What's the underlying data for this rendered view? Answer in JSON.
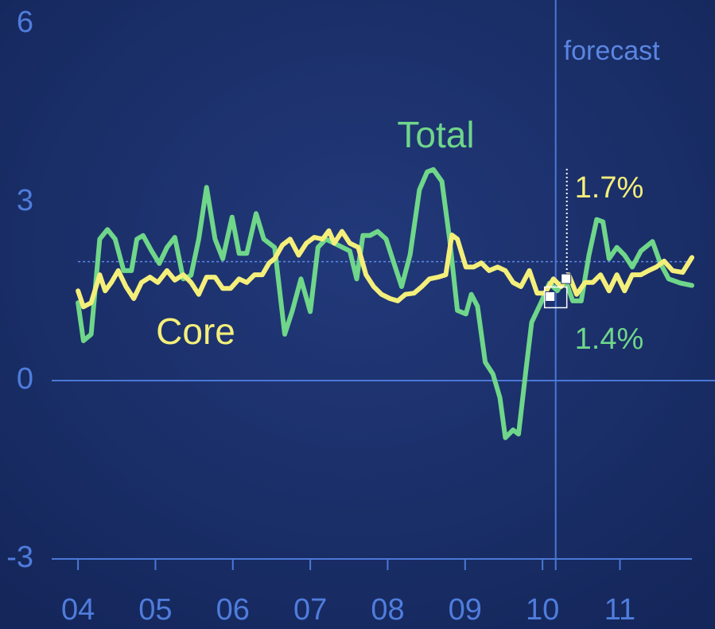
{
  "chart_data": {
    "type": "line",
    "xlim": [
      2003.66,
      2011.93
    ],
    "ylim": [
      -3,
      6
    ],
    "yticks": [
      -3,
      0,
      3,
      6
    ],
    "xticks": [
      {
        "value": 2004,
        "label": "04"
      },
      {
        "value": 2005,
        "label": "05"
      },
      {
        "value": 2006,
        "label": "06"
      },
      {
        "value": 2007,
        "label": "07"
      },
      {
        "value": 2008,
        "label": "08"
      },
      {
        "value": 2009,
        "label": "09"
      },
      {
        "value": 2010,
        "label": "10"
      },
      {
        "value": 2011,
        "label": "11"
      }
    ],
    "reference_line": 2,
    "forecast": {
      "label": "forecast",
      "x": 2010.17
    },
    "annotations": [
      {
        "text": "1.7%",
        "value": 1.7,
        "color": "#f4ef7a"
      },
      {
        "text": "1.4%",
        "value": 1.4,
        "color": "#6fd68a"
      }
    ],
    "series": [
      {
        "name": "Total",
        "color": "#6fd68a",
        "x": [
          2004.0,
          2004.07,
          2004.17,
          2004.28,
          2004.38,
          2004.48,
          2004.59,
          2004.69,
          2004.76,
          2004.84,
          2004.95,
          2005.05,
          2005.15,
          2005.25,
          2005.36,
          2005.46,
          2005.56,
          2005.66,
          2005.77,
          2005.87,
          2005.99,
          2006.08,
          2006.18,
          2006.3,
          2006.4,
          2006.54,
          2006.67,
          2006.77,
          2006.88,
          2007.0,
          2007.1,
          2007.2,
          2007.31,
          2007.51,
          2007.6,
          2007.68,
          2007.77,
          2007.87,
          2007.98,
          2008.08,
          2008.18,
          2008.29,
          2008.41,
          2008.51,
          2008.59,
          2008.7,
          2008.8,
          2008.9,
          2009.01,
          2009.08,
          2009.16,
          2009.26,
          2009.36,
          2009.45,
          2009.52,
          2009.62,
          2009.69,
          2009.78,
          2009.86,
          2009.98,
          2010.09,
          2010.19,
          2010.29,
          2010.39,
          2010.5,
          2010.6,
          2010.7,
          2010.78,
          2010.86,
          2010.96,
          2011.06,
          2011.16,
          2011.27,
          2011.42,
          2011.52,
          2011.63,
          2011.78,
          2011.93
        ],
        "values": [
          1.31,
          0.67,
          0.78,
          2.38,
          2.54,
          2.38,
          1.85,
          1.85,
          2.38,
          2.44,
          2.18,
          1.97,
          2.24,
          2.41,
          1.71,
          1.77,
          2.38,
          3.25,
          2.38,
          2.05,
          2.75,
          2.14,
          2.14,
          2.81,
          2.38,
          2.24,
          0.78,
          1.18,
          1.71,
          1.16,
          2.24,
          2.38,
          2.31,
          2.18,
          1.71,
          2.44,
          2.44,
          2.51,
          2.38,
          1.98,
          1.58,
          2.12,
          3.21,
          3.51,
          3.55,
          3.35,
          2.38,
          1.18,
          1.12,
          1.45,
          1.25,
          0.31,
          0.11,
          -0.29,
          -0.96,
          -0.83,
          -0.9,
          0.11,
          0.98,
          1.31,
          1.64,
          1.51,
          1.71,
          1.34,
          1.34,
          2.11,
          2.71,
          2.67,
          2.05,
          2.24,
          2.11,
          1.91,
          2.18,
          2.34,
          1.98,
          1.71,
          1.64,
          1.6
        ]
      },
      {
        "name": "Core",
        "color": "#f4ef7a",
        "x": [
          2004.0,
          2004.07,
          2004.17,
          2004.28,
          2004.35,
          2004.43,
          2004.52,
          2004.62,
          2004.72,
          2004.82,
          2004.93,
          2005.03,
          2005.15,
          2005.25,
          2005.36,
          2005.46,
          2005.56,
          2005.66,
          2005.77,
          2005.87,
          2005.97,
          2006.08,
          2006.18,
          2006.28,
          2006.38,
          2006.47,
          2006.54,
          2006.64,
          2006.74,
          2006.85,
          2006.95,
          2007.05,
          2007.16,
          2007.24,
          2007.31,
          2007.41,
          2007.51,
          2007.62,
          2007.72,
          2007.82,
          2007.92,
          2008.03,
          2008.13,
          2008.23,
          2008.34,
          2008.44,
          2008.54,
          2008.65,
          2008.75,
          2008.83,
          2008.9,
          2009.01,
          2009.11,
          2009.21,
          2009.31,
          2009.42,
          2009.52,
          2009.62,
          2009.72,
          2009.83,
          2009.93,
          2010.03,
          2010.14,
          2010.24,
          2010.34,
          2010.44,
          2010.55,
          2010.65,
          2010.75,
          2010.86,
          2010.96,
          2011.06,
          2011.16,
          2011.27,
          2011.37,
          2011.47,
          2011.57,
          2011.68,
          2011.81,
          2011.93
        ],
        "values": [
          1.51,
          1.24,
          1.31,
          1.78,
          1.51,
          1.65,
          1.85,
          1.58,
          1.38,
          1.65,
          1.74,
          1.65,
          1.85,
          1.69,
          1.78,
          1.65,
          1.45,
          1.74,
          1.74,
          1.55,
          1.55,
          1.71,
          1.65,
          1.78,
          1.78,
          1.98,
          2.05,
          2.28,
          2.38,
          2.11,
          2.31,
          2.41,
          2.38,
          2.52,
          2.31,
          2.51,
          2.31,
          2.24,
          1.78,
          1.58,
          1.45,
          1.38,
          1.34,
          1.45,
          1.47,
          1.58,
          1.71,
          1.74,
          1.78,
          2.45,
          2.38,
          1.91,
          1.91,
          1.98,
          1.85,
          1.91,
          1.85,
          1.65,
          1.58,
          1.85,
          1.47,
          1.47,
          1.71,
          1.58,
          1.78,
          1.45,
          1.65,
          1.65,
          1.78,
          1.51,
          1.78,
          1.51,
          1.78,
          1.78,
          1.85,
          1.91,
          2.01,
          1.85,
          1.82,
          2.07
        ]
      }
    ]
  }
}
